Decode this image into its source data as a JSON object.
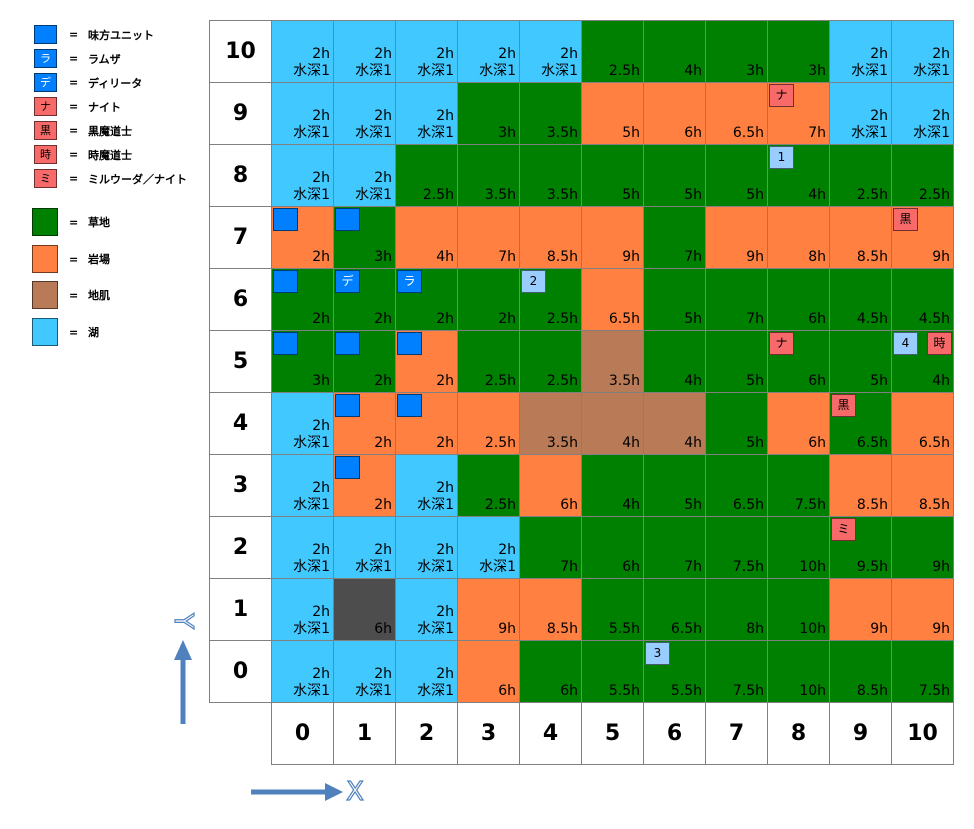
{
  "legend": {
    "equals": "=",
    "units": [
      {
        "fill": "#0080ff",
        "fg": "#ffffff",
        "label": "味方ユニット"
      },
      {
        "symbol": "ラ",
        "fill": "#0080ff",
        "fg": "#ffffff",
        "label": "ラムザ"
      },
      {
        "symbol": "デ",
        "fill": "#0080ff",
        "fg": "#ffffff",
        "label": "ディリータ"
      },
      {
        "symbol": "ナ",
        "fill": "#f86a6a",
        "fg": "#000000",
        "label": "ナイト"
      },
      {
        "symbol": "黒",
        "fill": "#f86a6a",
        "fg": "#000000",
        "label": "黒魔道士"
      },
      {
        "symbol": "時",
        "fill": "#f86a6a",
        "fg": "#000000",
        "label": "時魔道士"
      },
      {
        "symbol": "ミ",
        "fill": "#f86a6a",
        "fg": "#000000",
        "label": "ミルウーダ／ナイト"
      }
    ],
    "terrain": [
      {
        "fill": "#008000",
        "label": "草地"
      },
      {
        "fill": "#ff8040",
        "label": "岩場"
      },
      {
        "fill": "#b97a57",
        "label": "地肌"
      },
      {
        "fill": "#40c8ff",
        "label": "湖"
      }
    ]
  },
  "map": {
    "x_labels": [
      "0",
      "1",
      "2",
      "3",
      "4",
      "5",
      "6",
      "7",
      "8",
      "9",
      "10"
    ],
    "rows": [
      {
        "y": "10",
        "cells": [
          {
            "fill": "#40c8ff",
            "cost": "2h",
            "depth": "水深1"
          },
          {
            "fill": "#40c8ff",
            "cost": "2h",
            "depth": "水深1"
          },
          {
            "fill": "#40c8ff",
            "cost": "2h",
            "depth": "水深1"
          },
          {
            "fill": "#40c8ff",
            "cost": "2h",
            "depth": "水深1"
          },
          {
            "fill": "#40c8ff",
            "cost": "2h",
            "depth": "水深1"
          },
          {
            "fill": "#008000",
            "cost": "2.5h"
          },
          {
            "fill": "#008000",
            "cost": "4h"
          },
          {
            "fill": "#008000",
            "cost": "3h"
          },
          {
            "fill": "#008000",
            "cost": "3h"
          },
          {
            "fill": "#40c8ff",
            "cost": "2h",
            "depth": "水深1"
          },
          {
            "fill": "#40c8ff",
            "cost": "2h",
            "depth": "水深1"
          }
        ]
      },
      {
        "y": "9",
        "cells": [
          {
            "fill": "#40c8ff",
            "cost": "2h",
            "depth": "水深1"
          },
          {
            "fill": "#40c8ff",
            "cost": "2h",
            "depth": "水深1"
          },
          {
            "fill": "#40c8ff",
            "cost": "2h",
            "depth": "水深1"
          },
          {
            "fill": "#008000",
            "cost": "3h"
          },
          {
            "fill": "#008000",
            "cost": "3.5h"
          },
          {
            "fill": "#ff8040",
            "cost": "5h"
          },
          {
            "fill": "#ff8040",
            "cost": "6h"
          },
          {
            "fill": "#ff8040",
            "cost": "6.5h"
          },
          {
            "fill": "#ff8040",
            "cost": "7h",
            "units": [
              {
                "symbol": "ナ",
                "fill": "#f86a6a",
                "fg": "#000000"
              }
            ]
          },
          {
            "fill": "#40c8ff",
            "cost": "2h",
            "depth": "水深1"
          },
          {
            "fill": "#40c8ff",
            "cost": "2h",
            "depth": "水深1"
          }
        ]
      },
      {
        "y": "8",
        "cells": [
          {
            "fill": "#40c8ff",
            "cost": "2h",
            "depth": "水深1"
          },
          {
            "fill": "#40c8ff",
            "cost": "2h",
            "depth": "水深1"
          },
          {
            "fill": "#008000",
            "cost": "2.5h"
          },
          {
            "fill": "#008000",
            "cost": "3.5h"
          },
          {
            "fill": "#008000",
            "cost": "3.5h"
          },
          {
            "fill": "#008000",
            "cost": "5h"
          },
          {
            "fill": "#008000",
            "cost": "5h"
          },
          {
            "fill": "#008000",
            "cost": "5h"
          },
          {
            "fill": "#008000",
            "cost": "4h",
            "units": [
              {
                "symbol": "1",
                "fill": "#99ccff",
                "fg": "#000000"
              }
            ]
          },
          {
            "fill": "#008000",
            "cost": "2.5h"
          },
          {
            "fill": "#008000",
            "cost": "2.5h"
          }
        ]
      },
      {
        "y": "7",
        "cells": [
          {
            "fill": "#ff8040",
            "cost": "2h",
            "units": [
              {
                "fill": "#0080ff",
                "fg": "#ffffff"
              }
            ]
          },
          {
            "fill": "#008000",
            "cost": "3h",
            "units": [
              {
                "fill": "#0080ff",
                "fg": "#ffffff"
              }
            ]
          },
          {
            "fill": "#ff8040",
            "cost": "4h"
          },
          {
            "fill": "#ff8040",
            "cost": "7h"
          },
          {
            "fill": "#ff8040",
            "cost": "8.5h"
          },
          {
            "fill": "#ff8040",
            "cost": "9h"
          },
          {
            "fill": "#008000",
            "cost": "7h"
          },
          {
            "fill": "#ff8040",
            "cost": "9h"
          },
          {
            "fill": "#ff8040",
            "cost": "8h"
          },
          {
            "fill": "#ff8040",
            "cost": "8.5h"
          },
          {
            "fill": "#ff8040",
            "cost": "9h",
            "units": [
              {
                "symbol": "黒",
                "fill": "#f86a6a",
                "fg": "#000000"
              }
            ]
          }
        ]
      },
      {
        "y": "6",
        "cells": [
          {
            "fill": "#008000",
            "cost": "2h",
            "units": [
              {
                "fill": "#0080ff",
                "fg": "#ffffff"
              }
            ]
          },
          {
            "fill": "#008000",
            "cost": "2h",
            "units": [
              {
                "symbol": "デ",
                "fill": "#0080ff",
                "fg": "#ffffff"
              }
            ]
          },
          {
            "fill": "#008000",
            "cost": "2h",
            "units": [
              {
                "symbol": "ラ",
                "fill": "#0080ff",
                "fg": "#ffffff"
              }
            ]
          },
          {
            "fill": "#008000",
            "cost": "2h"
          },
          {
            "fill": "#008000",
            "cost": "2.5h",
            "units": [
              {
                "symbol": "2",
                "fill": "#99ccff",
                "fg": "#000000"
              }
            ]
          },
          {
            "fill": "#ff8040",
            "cost": "6.5h"
          },
          {
            "fill": "#008000",
            "cost": "5h"
          },
          {
            "fill": "#008000",
            "cost": "7h"
          },
          {
            "fill": "#008000",
            "cost": "6h"
          },
          {
            "fill": "#008000",
            "cost": "4.5h"
          },
          {
            "fill": "#008000",
            "cost": "4.5h"
          }
        ]
      },
      {
        "y": "5",
        "cells": [
          {
            "fill": "#008000",
            "cost": "3h",
            "units": [
              {
                "fill": "#0080ff",
                "fg": "#ffffff"
              }
            ]
          },
          {
            "fill": "#008000",
            "cost": "2h",
            "units": [
              {
                "fill": "#0080ff",
                "fg": "#ffffff"
              }
            ]
          },
          {
            "fill": "#ff8040",
            "cost": "2h",
            "units": [
              {
                "fill": "#0080ff",
                "fg": "#ffffff"
              }
            ]
          },
          {
            "fill": "#008000",
            "cost": "2.5h"
          },
          {
            "fill": "#008000",
            "cost": "2.5h"
          },
          {
            "fill": "#b97a57",
            "cost": "3.5h"
          },
          {
            "fill": "#008000",
            "cost": "4h"
          },
          {
            "fill": "#008000",
            "cost": "5h"
          },
          {
            "fill": "#008000",
            "cost": "6h",
            "units": [
              {
                "symbol": "ナ",
                "fill": "#f86a6a",
                "fg": "#000000"
              }
            ]
          },
          {
            "fill": "#008000",
            "cost": "5h"
          },
          {
            "fill": "#008000",
            "cost": "4h",
            "units": [
              {
                "symbol": "4",
                "fill": "#99ccff",
                "fg": "#000000"
              },
              {
                "symbol": "時",
                "fill": "#f86a6a",
                "fg": "#000000"
              }
            ]
          }
        ]
      },
      {
        "y": "4",
        "cells": [
          {
            "fill": "#40c8ff",
            "cost": "2h",
            "depth": "水深1"
          },
          {
            "fill": "#ff8040",
            "cost": "2h",
            "units": [
              {
                "fill": "#0080ff",
                "fg": "#ffffff"
              }
            ]
          },
          {
            "fill": "#ff8040",
            "cost": "2h",
            "units": [
              {
                "fill": "#0080ff",
                "fg": "#ffffff"
              }
            ]
          },
          {
            "fill": "#ff8040",
            "cost": "2.5h"
          },
          {
            "fill": "#b97a57",
            "cost": "3.5h"
          },
          {
            "fill": "#b97a57",
            "cost": "4h"
          },
          {
            "fill": "#b97a57",
            "cost": "4h"
          },
          {
            "fill": "#008000",
            "cost": "5h"
          },
          {
            "fill": "#ff8040",
            "cost": "6h"
          },
          {
            "fill": "#008000",
            "cost": "6.5h",
            "units": [
              {
                "symbol": "黒",
                "fill": "#f86a6a",
                "fg": "#000000"
              }
            ]
          },
          {
            "fill": "#ff8040",
            "cost": "6.5h"
          }
        ]
      },
      {
        "y": "3",
        "cells": [
          {
            "fill": "#40c8ff",
            "cost": "2h",
            "depth": "水深1"
          },
          {
            "fill": "#ff8040",
            "cost": "2h",
            "units": [
              {
                "fill": "#0080ff",
                "fg": "#ffffff"
              }
            ]
          },
          {
            "fill": "#40c8ff",
            "cost": "2h",
            "depth": "水深1"
          },
          {
            "fill": "#008000",
            "cost": "2.5h"
          },
          {
            "fill": "#ff8040",
            "cost": "6h"
          },
          {
            "fill": "#008000",
            "cost": "4h"
          },
          {
            "fill": "#008000",
            "cost": "5h"
          },
          {
            "fill": "#008000",
            "cost": "6.5h"
          },
          {
            "fill": "#008000",
            "cost": "7.5h"
          },
          {
            "fill": "#ff8040",
            "cost": "8.5h"
          },
          {
            "fill": "#ff8040",
            "cost": "8.5h"
          }
        ]
      },
      {
        "y": "2",
        "cells": [
          {
            "fill": "#40c8ff",
            "cost": "2h",
            "depth": "水深1"
          },
          {
            "fill": "#40c8ff",
            "cost": "2h",
            "depth": "水深1"
          },
          {
            "fill": "#40c8ff",
            "cost": "2h",
            "depth": "水深1"
          },
          {
            "fill": "#40c8ff",
            "cost": "2h",
            "depth": "水深1"
          },
          {
            "fill": "#008000",
            "cost": "7h"
          },
          {
            "fill": "#008000",
            "cost": "6h"
          },
          {
            "fill": "#008000",
            "cost": "7h"
          },
          {
            "fill": "#008000",
            "cost": "7.5h"
          },
          {
            "fill": "#008000",
            "cost": "10h"
          },
          {
            "fill": "#008000",
            "cost": "9.5h",
            "units": [
              {
                "symbol": "ミ",
                "fill": "#f86a6a",
                "fg": "#000000"
              }
            ]
          },
          {
            "fill": "#008000",
            "cost": "9h"
          }
        ]
      },
      {
        "y": "1",
        "cells": [
          {
            "fill": "#40c8ff",
            "cost": "2h",
            "depth": "水深1"
          },
          {
            "fill": "#4d4d4d",
            "cost": "6h"
          },
          {
            "fill": "#40c8ff",
            "cost": "2h",
            "depth": "水深1"
          },
          {
            "fill": "#ff8040",
            "cost": "9h"
          },
          {
            "fill": "#ff8040",
            "cost": "8.5h"
          },
          {
            "fill": "#008000",
            "cost": "5.5h"
          },
          {
            "fill": "#008000",
            "cost": "6.5h"
          },
          {
            "fill": "#008000",
            "cost": "8h"
          },
          {
            "fill": "#008000",
            "cost": "10h"
          },
          {
            "fill": "#ff8040",
            "cost": "9h"
          },
          {
            "fill": "#ff8040",
            "cost": "9h"
          }
        ]
      },
      {
        "y": "0",
        "cells": [
          {
            "fill": "#40c8ff",
            "cost": "2h",
            "depth": "水深1"
          },
          {
            "fill": "#40c8ff",
            "cost": "2h",
            "depth": "水深1"
          },
          {
            "fill": "#40c8ff",
            "cost": "2h",
            "depth": "水深1"
          },
          {
            "fill": "#ff8040",
            "cost": "6h"
          },
          {
            "fill": "#008000",
            "cost": "6h"
          },
          {
            "fill": "#008000",
            "cost": "5.5h"
          },
          {
            "fill": "#008000",
            "cost": "5.5h",
            "units": [
              {
                "symbol": "3",
                "fill": "#99ccff",
                "fg": "#000000"
              }
            ]
          },
          {
            "fill": "#008000",
            "cost": "7.5h"
          },
          {
            "fill": "#008000",
            "cost": "10h"
          },
          {
            "fill": "#008000",
            "cost": "8.5h"
          },
          {
            "fill": "#008000",
            "cost": "7.5h"
          }
        ]
      }
    ]
  },
  "axes": {
    "color": "#4f81bd",
    "x_label": "X",
    "y_label": "Y"
  }
}
